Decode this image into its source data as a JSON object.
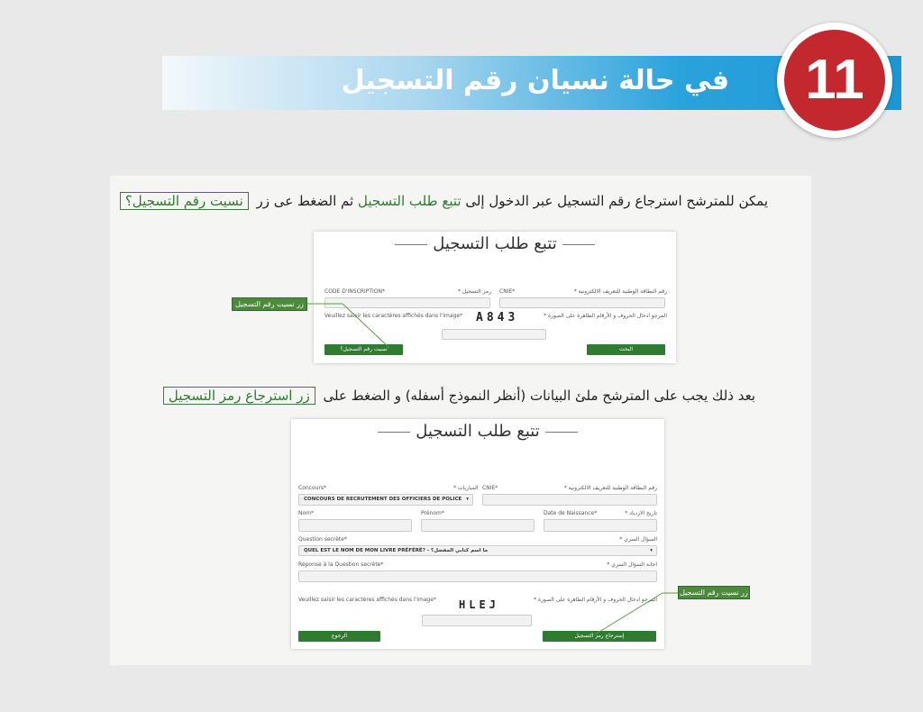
{
  "header": {
    "step_number": "11",
    "title": "في حالة نسيان رقم التسجيل"
  },
  "intro1": {
    "part1": "يمكن للمترشح استرجاع  رقم التسجيل عبر الدخول إلى",
    "link": "تتبع طلب التسجيل",
    "part2": "ثم الضغط عى زر",
    "button_ref": "نسيت رقم التسجيل؟"
  },
  "form1": {
    "title": "تتبع طلب التسجيل",
    "code_label_fr": "CODE D'INSCRIPTION*",
    "code_label_ar": "رمز التسجيل *",
    "cnie_label_fr": "CNIE*",
    "cnie_label_ar": "رقم البطاقة الوطنية للتعريف الالكترونية *",
    "captcha_label_fr": "Veuillez saisir les caractères affichés dans l'image*",
    "captcha_label_ar": "المرجو ادخال الحروف و الأرقام الظاهرة على الصورة *",
    "captcha_text": "A843",
    "forgot_button": "نسيت رقم التسجيل؟",
    "search_button": "البحث"
  },
  "callout1": "زر نسيت رقم التسجيل",
  "intro2": {
    "part1": "بعد ذلك  يجب على المترشح ملئ البيانات (أنظر النموذج أسفله) و الضغط على",
    "button_ref": "زر استرجاع رمز التسجيل"
  },
  "form2": {
    "title": "تتبع طلب التسجيل",
    "concours_label_fr": "Concours*",
    "concours_label_ar": "المباريات *",
    "concours_value": "CONCOURS DE RECRUTEMENT DES OFFICIERS DE POLICE",
    "cnie_label_fr": "CNIE*",
    "cnie_label_ar": "رقم البطاقة الوطنية للتعريف الالكترونية *",
    "nom_label": "Nom*",
    "prenom_label": "Prénom*",
    "dob_label_fr": "Date de Naissance*",
    "dob_label_ar": "تاريخ الازدياد *",
    "question_label_fr": "Question secrète*",
    "question_label_ar": "السؤال السري *",
    "question_value": "QUEL EST LE NOM DE MON LIVRE PRÉFÉRÉ? - ما اسم كتابي المفضل؟",
    "answer_label_fr": "Réponse à la Question secrète*",
    "answer_label_ar": "اجابة السؤال السري *",
    "captcha_label_fr": "Veuillez saisir les caractères affichés dans l'image*",
    "captcha_label_ar": "المرجو ادخال الحروف و الأرقام الظاهرة على الصورة *",
    "captcha_text": "HLEJ",
    "back_button": "الرجوع",
    "recover_button": "إسترجاع رمز التسجيل"
  },
  "callout2": "زر نسيت رقم التسجيل",
  "colors": {
    "banner_blue": "#1d97d4",
    "badge_red": "#c3282f",
    "button_green": "#2f7b2f"
  }
}
